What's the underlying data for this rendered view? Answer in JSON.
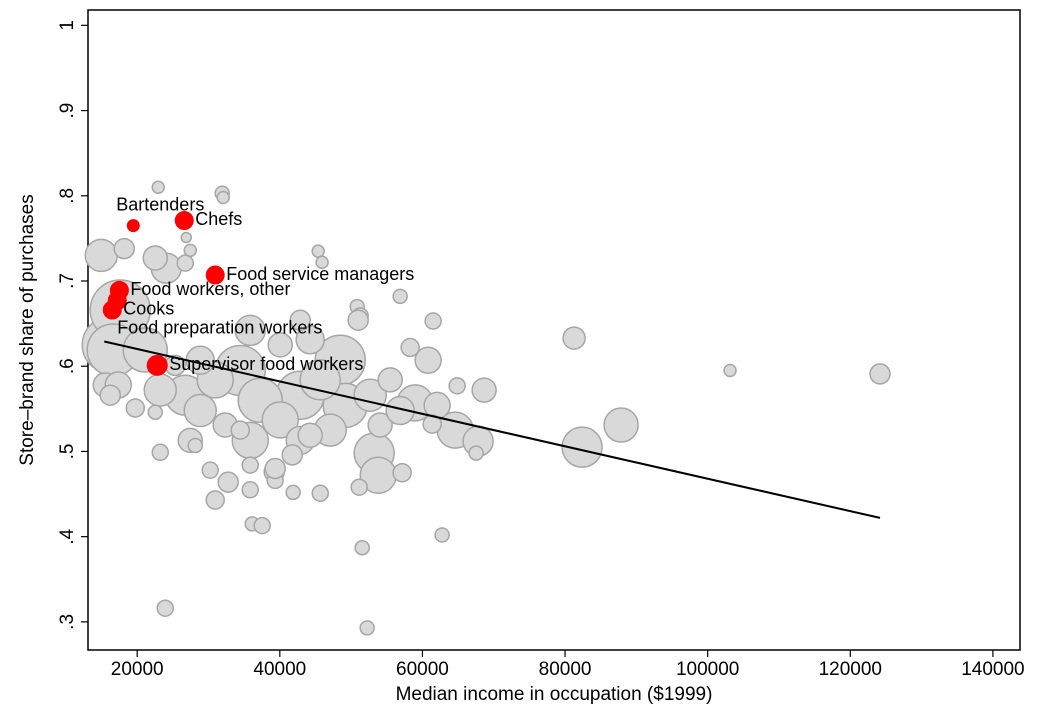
{
  "chart_data": {
    "type": "scatter",
    "xlabel": "Median income in occupation ($1999)",
    "ylabel": "Store–brand share of purchases",
    "xlim": [
      13100,
      143800
    ],
    "ylim": [
      0.267,
      1.018
    ],
    "xticks": [
      20000,
      40000,
      60000,
      80000,
      100000,
      120000,
      140000
    ],
    "yticks": [
      {
        "value": 0.3,
        "label": ".3"
      },
      {
        "value": 0.4,
        "label": ".4"
      },
      {
        "value": 0.5,
        "label": ".5"
      },
      {
        "value": 0.6,
        "label": ".6"
      },
      {
        "value": 0.7,
        "label": ".7"
      },
      {
        "value": 0.8,
        "label": ".8"
      },
      {
        "value": 0.9,
        "label": ".9"
      },
      1
    ],
    "series": [
      {
        "color": "#d9d9d9",
        "x": [
          16220,
          17620,
          16640,
          14960,
          21130,
          34450,
          48470,
          42860,
          37250,
          49170,
          45660,
          82390,
          53230,
          26740,
          53800,
          30940,
          58980,
          40060,
          64590,
          24070,
          23230,
          28840,
          35850,
          47070,
          87860,
          67810,
          15520,
          44260,
          35850,
          42860,
          18180,
          22950,
          31920,
          32060,
          22530,
          26740,
          27440,
          26880,
          45380,
          45930,
          56880,
          50850,
          51270,
          50990,
          61500,
          81270,
          60800,
          58280,
          64870,
          68650,
          62060,
          67530,
          61370,
          57160,
          51130,
          45670,
          41870,
          39210,
          36130,
          37530,
          51550,
          62760,
          23930,
          52250,
          103140,
          124170,
          17340,
          16220,
          19730,
          32340,
          27440,
          30240,
          32760,
          30940,
          35850,
          39350,
          39350,
          41740,
          44260,
          54070,
          56880,
          52670,
          55480,
          40060,
          42860,
          28840,
          25330,
          23230,
          22530,
          28140,
          35850,
          34450
        ],
        "y": [
          0.625,
          0.666,
          0.619,
          0.73,
          0.619,
          0.595,
          0.607,
          0.566,
          0.56,
          0.554,
          0.584,
          0.505,
          0.498,
          0.566,
          0.472,
          0.584,
          0.557,
          0.537,
          0.525,
          0.715,
          0.572,
          0.548,
          0.642,
          0.525,
          0.531,
          0.512,
          0.578,
          0.631,
          0.513,
          0.513,
          0.738,
          0.81,
          0.803,
          0.798,
          0.727,
          0.721,
          0.736,
          0.751,
          0.735,
          0.722,
          0.682,
          0.67,
          0.659,
          0.654,
          0.653,
          0.633,
          0.607,
          0.622,
          0.577,
          0.572,
          0.554,
          0.498,
          0.532,
          0.475,
          0.458,
          0.451,
          0.452,
          0.476,
          0.415,
          0.413,
          0.387,
          0.402,
          0.316,
          0.293,
          0.595,
          0.591,
          0.578,
          0.566,
          0.551,
          0.531,
          0.513,
          0.478,
          0.464,
          0.443,
          0.455,
          0.466,
          0.48,
          0.496,
          0.519,
          0.531,
          0.548,
          0.566,
          0.584,
          0.625,
          0.654,
          0.607,
          0.601,
          0.499,
          0.546,
          0.507,
          0.484,
          0.525
        ],
        "sizes": [
          28,
          30,
          26,
          16,
          22,
          25,
          25,
          24,
          22,
          22,
          20,
          20,
          20,
          20,
          18,
          18,
          18,
          18,
          18,
          15,
          16,
          16,
          15,
          16,
          17,
          15,
          12,
          14,
          18,
          14,
          10,
          6,
          7,
          6,
          12,
          8,
          6,
          5,
          6,
          6,
          7,
          7,
          8,
          10,
          8,
          11,
          13,
          9,
          8,
          12,
          13,
          7,
          9,
          9,
          8,
          8,
          7,
          10,
          7,
          8,
          7,
          7,
          8,
          7,
          6,
          10,
          13,
          10,
          9,
          12,
          12,
          8,
          10,
          9,
          8,
          8,
          10,
          10,
          12,
          12,
          14,
          16,
          12,
          12,
          10,
          14,
          10,
          8,
          7,
          7,
          8,
          9
        ]
      },
      {
        "color": "#ff0000",
        "x": [
          19450,
          26600,
          30940,
          17500,
          16500,
          17200,
          22810
        ],
        "y": [
          0.765,
          0.771,
          0.707,
          0.689,
          0.666,
          0.677,
          0.601
        ],
        "sizes": [
          6,
          9,
          9,
          9,
          9,
          9,
          10
        ],
        "labels": [
          "Bartenders",
          "Chefs",
          "Food service managers",
          "Food workers, other",
          "Cooks",
          "Food preparation workers",
          "Supervisor food workers"
        ]
      }
    ],
    "fit": {
      "type": "line",
      "color": "#000000",
      "x": [
        15380,
        124170
      ],
      "y": [
        0.629,
        0.422
      ]
    }
  }
}
